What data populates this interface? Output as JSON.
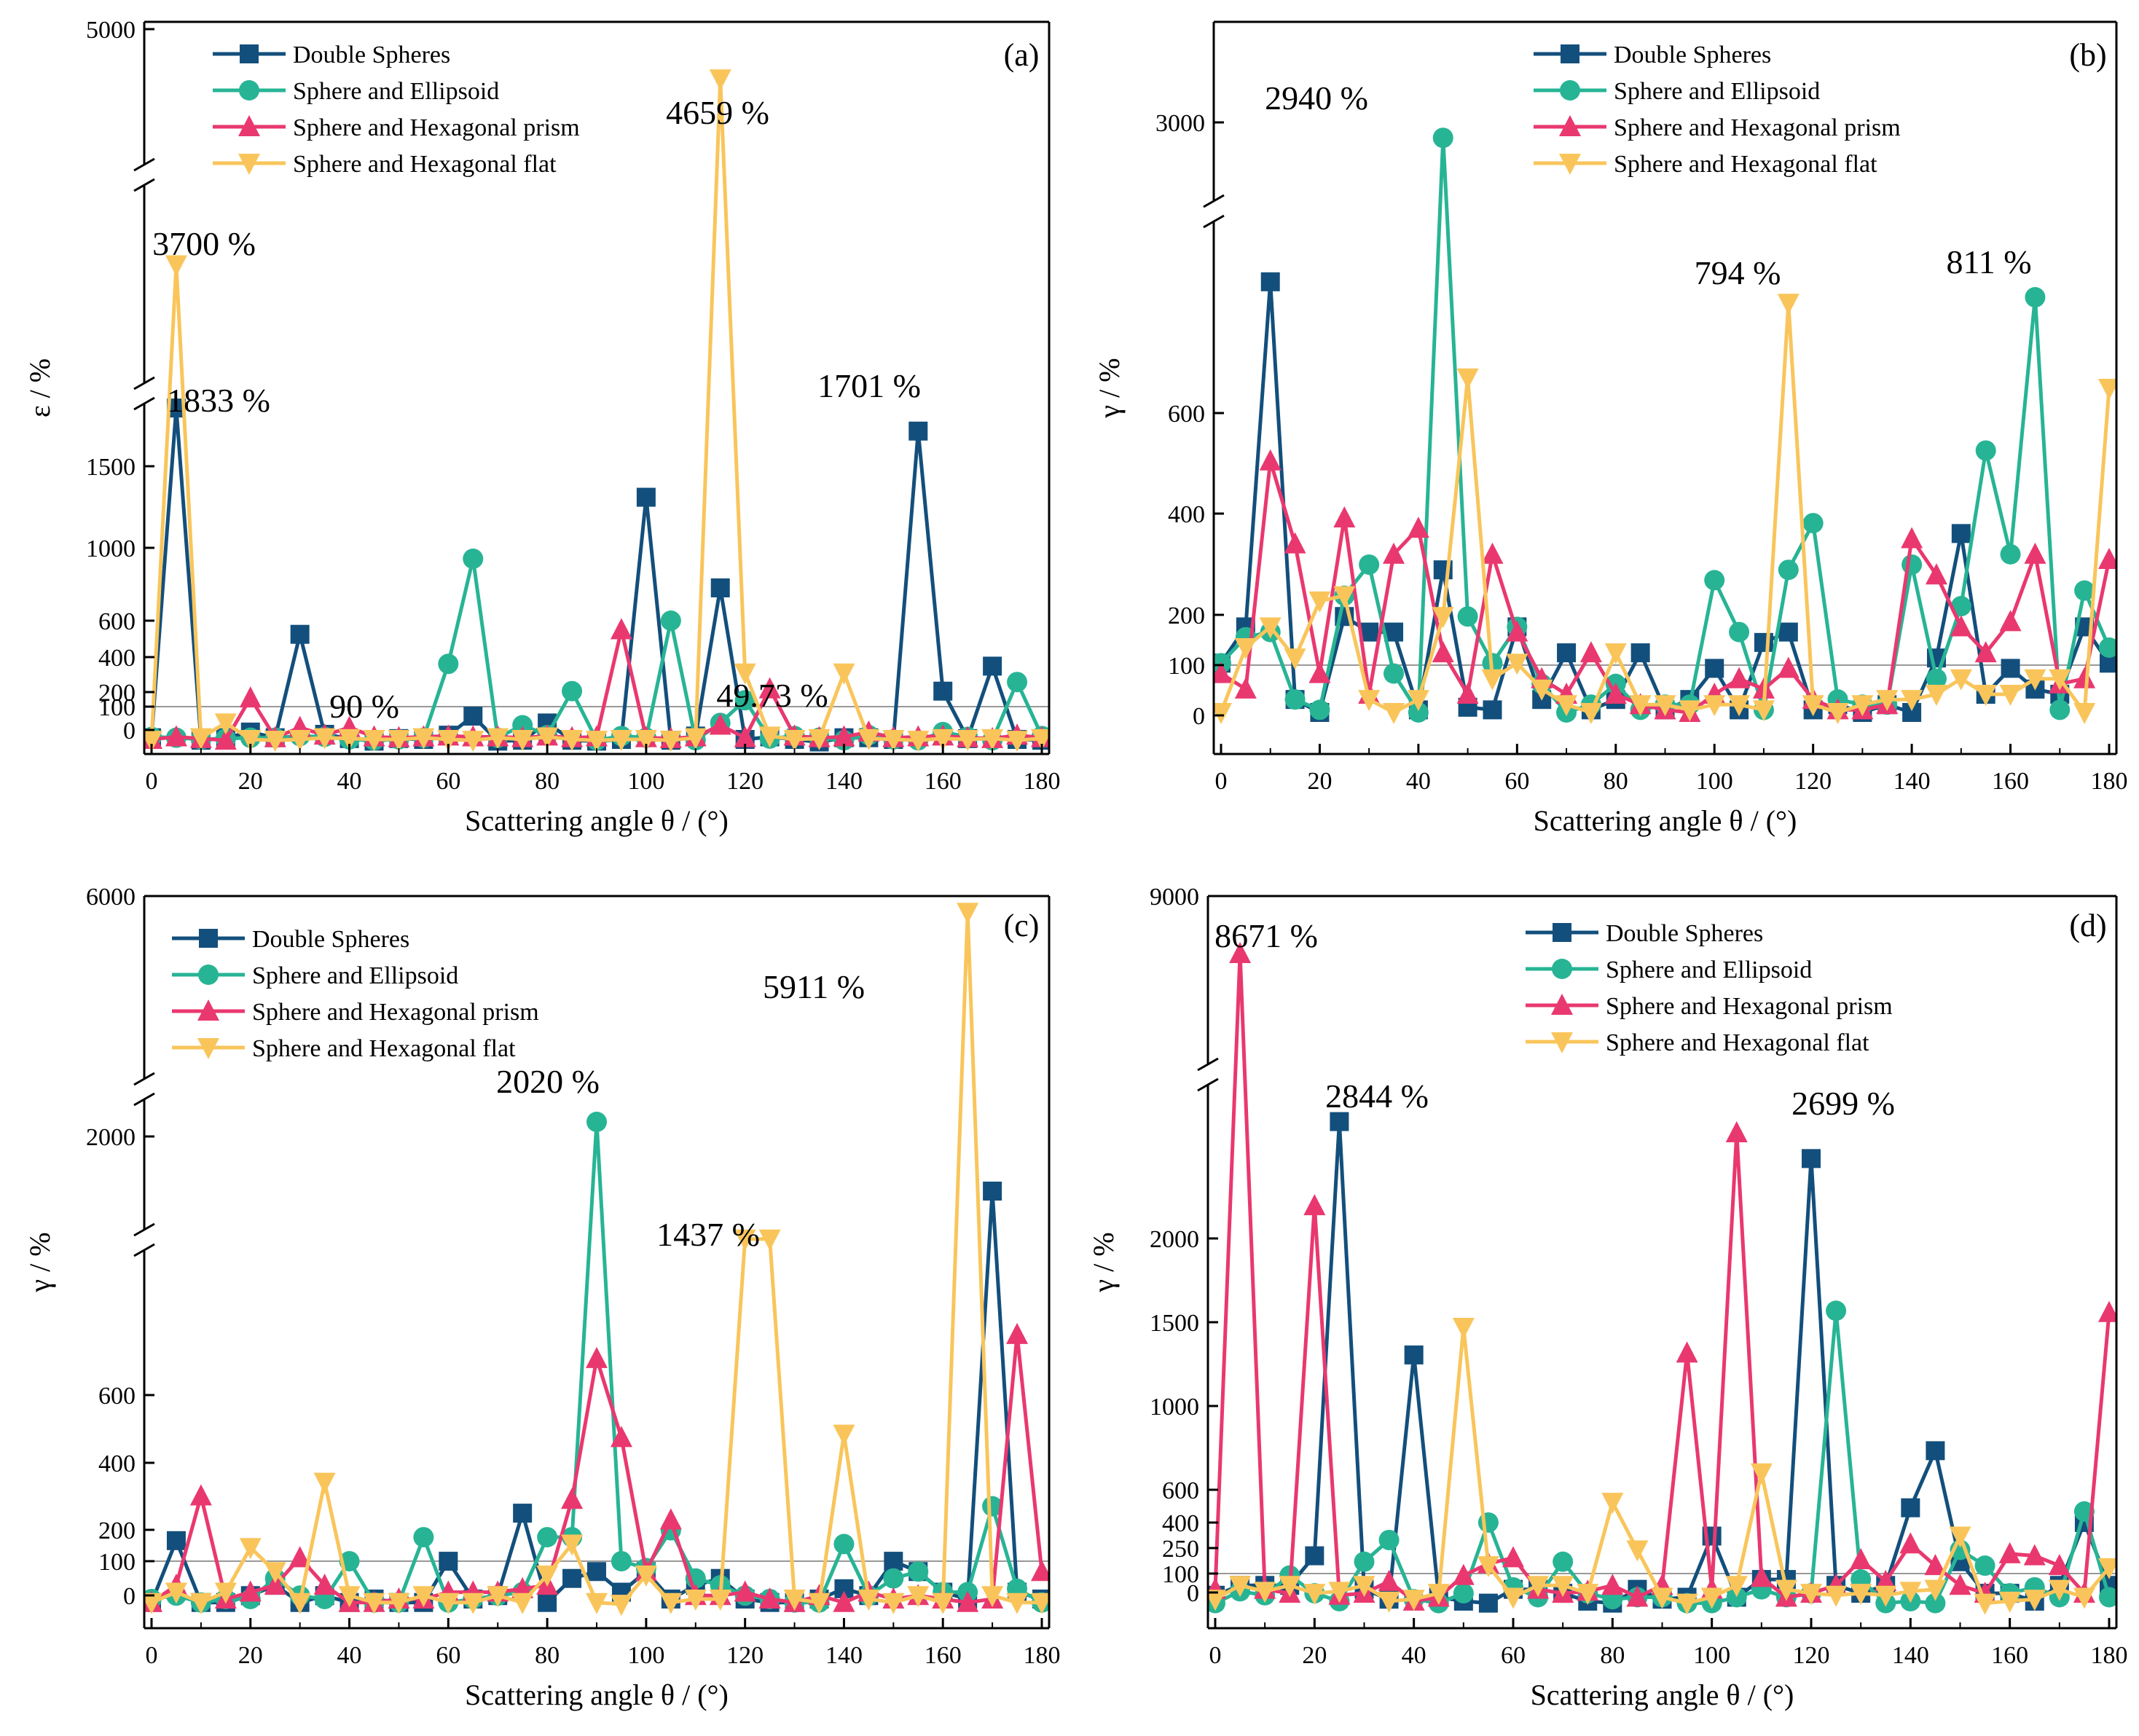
{
  "series_meta": [
    {
      "name": "Double Spheres",
      "color": "#134f7c",
      "marker": "square"
    },
    {
      "name": "Sphere and Ellipsoid",
      "color": "#27b495",
      "marker": "circle"
    },
    {
      "name": "Sphere and Hexagonal prism",
      "color": "#e9386f",
      "marker": "triangle-up"
    },
    {
      "name": "Sphere and Hexagonal flat",
      "color": "#f9c55b",
      "marker": "triangle-down"
    }
  ],
  "chart_data": [
    {
      "type": "line",
      "panel": "(a)",
      "xlabel": "Scattering angle θ / (°)",
      "ylabel": "ε / %",
      "xlim": [
        0,
        180
      ],
      "x_ticks": [
        "0",
        "20",
        "40",
        "60",
        "80",
        "100",
        "120",
        "140",
        "160",
        "180"
      ],
      "y_ticks": [
        "0",
        "100",
        "200",
        "400",
        "600",
        "1000",
        "1500",
        "5000"
      ],
      "reference_line": 100,
      "annotations": [
        "3700 %",
        "1833 %",
        "4659 %",
        "1701 %",
        "49.73 %",
        "90 %"
      ],
      "x": [
        0,
        5,
        10,
        15,
        20,
        25,
        30,
        35,
        40,
        45,
        50,
        55,
        60,
        65,
        70,
        75,
        80,
        85,
        90,
        95,
        100,
        105,
        110,
        115,
        120,
        125,
        130,
        135,
        140,
        145,
        150,
        155,
        160,
        165,
        170,
        175,
        180
      ],
      "series": [
        {
          "name": "Double Spheres",
          "values": [
            60,
            1833,
            30,
            60,
            110,
            60,
            540,
            100,
            50,
            20,
            50,
            40,
            90,
            180,
            20,
            30,
            150,
            30,
            20,
            40,
            1310,
            30,
            80,
            780,
            40,
            70,
            40,
            10,
            60,
            60,
            40,
            1701,
            290,
            50,
            400,
            40,
            30
          ]
        },
        {
          "name": "Sphere and Ellipsoid",
          "values": [
            70,
            60,
            40,
            50,
            60,
            60,
            80,
            70,
            40,
            30,
            40,
            60,
            410,
            940,
            60,
            140,
            90,
            290,
            30,
            80,
            60,
            600,
            30,
            150,
            250,
            50,
            80,
            60,
            30,
            90,
            40,
            30,
            110,
            70,
            30,
            330,
            80
          ]
        },
        {
          "name": "Sphere and Hexagonal prism",
          "values": [
            40,
            70,
            50,
            30,
            260,
            60,
            130,
            90,
            130,
            70,
            60,
            70,
            80,
            70,
            70,
            60,
            80,
            60,
            70,
            560,
            60,
            50,
            70,
            140,
            60,
            300,
            80,
            60,
            70,
            110,
            60,
            70,
            80,
            60,
            50,
            90,
            60
          ]
        },
        {
          "name": "Sphere and Hexagonal flat",
          "values": [
            30,
            3700,
            60,
            150,
            40,
            30,
            40,
            60,
            50,
            40,
            40,
            60,
            40,
            30,
            60,
            40,
            70,
            40,
            30,
            40,
            40,
            30,
            60,
            4659,
            370,
            80,
            40,
            50,
            370,
            50,
            40,
            30,
            50,
            40,
            50,
            30,
            50
          ]
        }
      ]
    },
    {
      "type": "line",
      "panel": "(b)",
      "xlabel": "Scattering angle θ / (°)",
      "ylabel": "γ / %",
      "xlim": [
        0,
        180
      ],
      "x_ticks": [
        "0",
        "20",
        "40",
        "60",
        "80",
        "100",
        "120",
        "140",
        "160",
        "180"
      ],
      "y_ticks": [
        "0",
        "100",
        "200",
        "400",
        "600",
        "3000"
      ],
      "reference_line": 100,
      "annotations": [
        "2940 %",
        "794 %",
        "811 %"
      ],
      "x": [
        0,
        5,
        10,
        15,
        20,
        25,
        30,
        35,
        40,
        45,
        50,
        55,
        60,
        65,
        70,
        75,
        80,
        85,
        90,
        95,
        100,
        105,
        110,
        115,
        120,
        125,
        130,
        135,
        140,
        145,
        150,
        155,
        160,
        165,
        170,
        175,
        180
      ],
      "series": [
        {
          "name": "Double Spheres",
          "values": [
            100,
            170,
            870,
            30,
            5,
            190,
            160,
            160,
            10,
            280,
            15,
            10,
            170,
            30,
            120,
            10,
            30,
            120,
            10,
            30,
            90,
            10,
            140,
            160,
            10,
            20,
            5,
            20,
            5,
            110,
            350,
            40,
            90,
            50,
            40,
            170,
            100
          ]
        },
        {
          "name": "Sphere and Ellipsoid",
          "values": [
            100,
            150,
            160,
            30,
            10,
            230,
            290,
            80,
            5,
            2940,
            190,
            100,
            170,
            60,
            5,
            20,
            60,
            10,
            20,
            20,
            260,
            160,
            10,
            280,
            370,
            30,
            20,
            20,
            290,
            70,
            210,
            510,
            310,
            811,
            10,
            240,
            130
          ]
        },
        {
          "name": "Sphere and Hexagonal prism",
          "values": [
            80,
            50,
            490,
            330,
            80,
            380,
            40,
            310,
            360,
            120,
            40,
            310,
            160,
            70,
            40,
            120,
            40,
            20,
            10,
            5,
            40,
            70,
            50,
            90,
            30,
            10,
            10,
            20,
            340,
            270,
            170,
            120,
            180,
            310,
            60,
            70,
            300
          ]
        },
        {
          "name": "Sphere and Hexagonal flat",
          "values": [
            5,
            130,
            170,
            110,
            220,
            230,
            30,
            5,
            30,
            190,
            650,
            70,
            100,
            50,
            20,
            5,
            120,
            20,
            20,
            10,
            20,
            20,
            10,
            794,
            20,
            5,
            20,
            30,
            30,
            40,
            70,
            40,
            40,
            70,
            70,
            5,
            630
          ]
        }
      ]
    },
    {
      "type": "line",
      "panel": "(c)",
      "xlabel": "Scattering angle θ / (°)",
      "ylabel": "γ / %",
      "xlim": [
        0,
        180
      ],
      "x_ticks": [
        "0",
        "20",
        "40",
        "60",
        "80",
        "100",
        "120",
        "140",
        "160",
        "180"
      ],
      "y_ticks": [
        "0",
        "100",
        "200",
        "400",
        "600",
        "2000",
        "6000"
      ],
      "reference_line": 100,
      "annotations": [
        "2020 %",
        "1437 %",
        "5911 %"
      ],
      "x": [
        0,
        5,
        10,
        15,
        20,
        25,
        30,
        35,
        40,
        45,
        50,
        55,
        60,
        65,
        70,
        75,
        80,
        85,
        90,
        95,
        100,
        105,
        110,
        115,
        120,
        125,
        130,
        135,
        140,
        145,
        150,
        155,
        160,
        165,
        170,
        175,
        180
      ],
      "series": [
        {
          "name": "Double Spheres",
          "values": [
            10,
            190,
            10,
            10,
            30,
            60,
            10,
            30,
            10,
            20,
            10,
            10,
            130,
            20,
            30,
            270,
            10,
            80,
            100,
            40,
            100,
            20,
            60,
            80,
            20,
            10,
            10,
            20,
            50,
            30,
            130,
            100,
            40,
            20,
            1700,
            40,
            20
          ]
        },
        {
          "name": "Sphere and Ellipsoid",
          "values": [
            20,
            30,
            10,
            20,
            20,
            80,
            30,
            20,
            130,
            10,
            10,
            200,
            10,
            20,
            30,
            40,
            200,
            200,
            2020,
            130,
            110,
            220,
            80,
            60,
            30,
            20,
            10,
            10,
            180,
            30,
            80,
            100,
            40,
            40,
            290,
            50,
            10
          ]
        },
        {
          "name": "Sphere and Hexagonal prism",
          "values": [
            10,
            60,
            320,
            20,
            40,
            60,
            140,
            60,
            10,
            10,
            20,
            20,
            40,
            40,
            40,
            50,
            60,
            310,
            720,
            490,
            100,
            250,
            30,
            30,
            40,
            20,
            10,
            30,
            10,
            40,
            20,
            30,
            20,
            10,
            20,
            790,
            100
          ]
        },
        {
          "name": "Sphere and Hexagonal flat",
          "values": [
            10,
            40,
            10,
            40,
            170,
            100,
            10,
            360,
            30,
            10,
            10,
            30,
            10,
            10,
            30,
            10,
            90,
            180,
            10,
            5,
            90,
            10,
            20,
            20,
            1437,
            1437,
            20,
            10,
            500,
            20,
            10,
            30,
            10,
            5911,
            30,
            10,
            10
          ]
        }
      ]
    },
    {
      "type": "line",
      "panel": "(d)",
      "xlabel": "Scattering angle θ / (°)",
      "ylabel": "γ / %",
      "xlim": [
        0,
        180
      ],
      "x_ticks": [
        "0",
        "20",
        "40",
        "60",
        "80",
        "100",
        "120",
        "140",
        "160",
        "180"
      ],
      "y_ticks": [
        "0",
        "100",
        "250",
        "400",
        "600",
        "1000",
        "1500",
        "2000",
        "9000"
      ],
      "reference_line": 100,
      "annotations": [
        "8671 %",
        "2844 %",
        "2699 %"
      ],
      "x": [
        0,
        5,
        10,
        15,
        20,
        25,
        30,
        35,
        40,
        45,
        50,
        55,
        60,
        65,
        70,
        75,
        80,
        85,
        90,
        95,
        100,
        105,
        110,
        115,
        120,
        125,
        130,
        135,
        140,
        145,
        150,
        155,
        160,
        165,
        170,
        175,
        180
      ],
      "series": [
        {
          "name": "Double Spheres",
          "values": [
            50,
            100,
            100,
            100,
            250,
            2844,
            80,
            30,
            1330,
            40,
            20,
            10,
            80,
            80,
            60,
            20,
            10,
            80,
            30,
            40,
            350,
            40,
            130,
            130,
            2699,
            100,
            60,
            100,
            500,
            810,
            220,
            60,
            60,
            20,
            100,
            420,
            100
          ]
        },
        {
          "name": "Sphere and Ellipsoid",
          "values": [
            10,
            70,
            50,
            150,
            60,
            20,
            220,
            330,
            30,
            10,
            60,
            420,
            90,
            40,
            220,
            60,
            30,
            40,
            40,
            10,
            10,
            40,
            80,
            40,
            60,
            1570,
            130,
            10,
            20,
            10,
            280,
            200,
            60,
            90,
            40,
            480,
            40
          ]
        },
        {
          "name": "Sphere and Hexagonal prism",
          "values": [
            80,
            8671,
            80,
            60,
            2140,
            50,
            60,
            120,
            20,
            40,
            150,
            210,
            240,
            80,
            60,
            70,
            100,
            40,
            100,
            1340,
            80,
            2800,
            140,
            40,
            60,
            100,
            230,
            120,
            310,
            200,
            100,
            60,
            260,
            250,
            200,
            60,
            1560
          ]
        },
        {
          "name": "Sphere and Hexagonal flat",
          "values": [
            30,
            100,
            70,
            100,
            60,
            70,
            100,
            20,
            30,
            60,
            1480,
            200,
            40,
            100,
            100,
            60,
            530,
            280,
            40,
            10,
            40,
            100,
            690,
            80,
            60,
            50,
            60,
            50,
            70,
            80,
            350,
            10,
            20,
            30,
            80,
            40,
            190
          ]
        }
      ]
    }
  ]
}
